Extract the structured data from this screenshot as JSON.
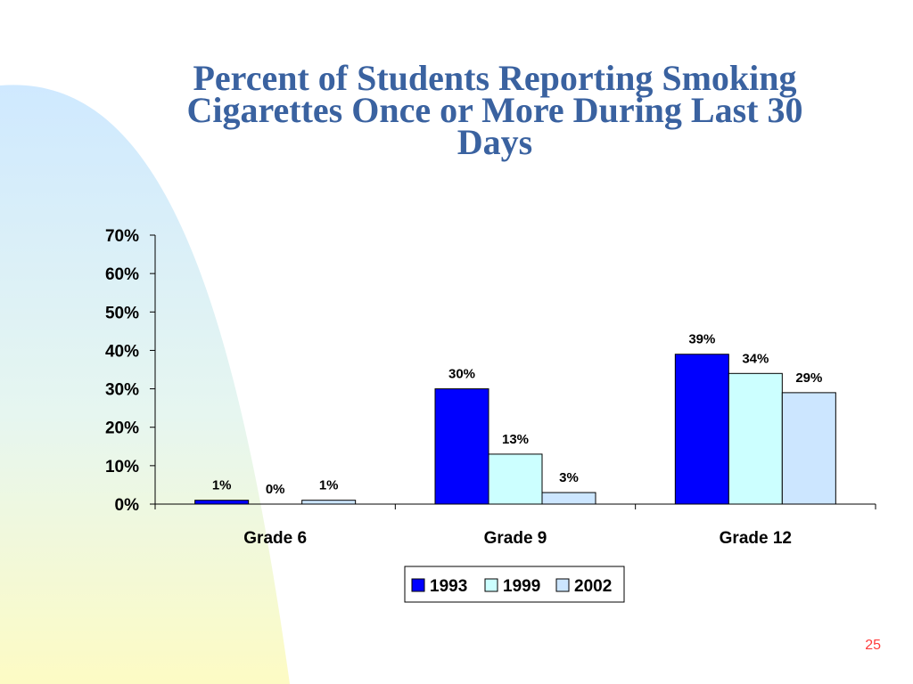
{
  "slide": {
    "title_lines": [
      "Percent of Students Reporting Smoking",
      "Cigarettes Once or More During Last 30",
      "Days"
    ],
    "page_number": "25",
    "colors": {
      "title": "#3a62a0",
      "page_number": "#ff3b3b"
    }
  },
  "chart_data": {
    "type": "bar",
    "title": "Percent of Students Reporting Smoking Cigarettes Once or More During Last 30 Days",
    "categories": [
      "Grade 6",
      "Grade 9",
      "Grade 12"
    ],
    "series": [
      {
        "name": "1993",
        "values": [
          1,
          30,
          39
        ],
        "labels": [
          "1%",
          "30%",
          "39%"
        ],
        "color": "#0000ff"
      },
      {
        "name": "1999",
        "values": [
          0,
          13,
          34
        ],
        "labels": [
          "0%",
          "13%",
          "34%"
        ],
        "color": "#ccffff"
      },
      {
        "name": "2002",
        "values": [
          1,
          3,
          29
        ],
        "labels": [
          "1%",
          "3%",
          "29%"
        ],
        "color": "#cce6ff"
      }
    ],
    "y_ticks": [
      0,
      10,
      20,
      30,
      40,
      50,
      60,
      70
    ],
    "y_tick_labels": [
      "0%",
      "10%",
      "20%",
      "30%",
      "40%",
      "50%",
      "60%",
      "70%"
    ],
    "ylim": [
      0,
      70
    ],
    "xlabel": "",
    "ylabel": "",
    "grid": false,
    "legend_position": "bottom"
  }
}
